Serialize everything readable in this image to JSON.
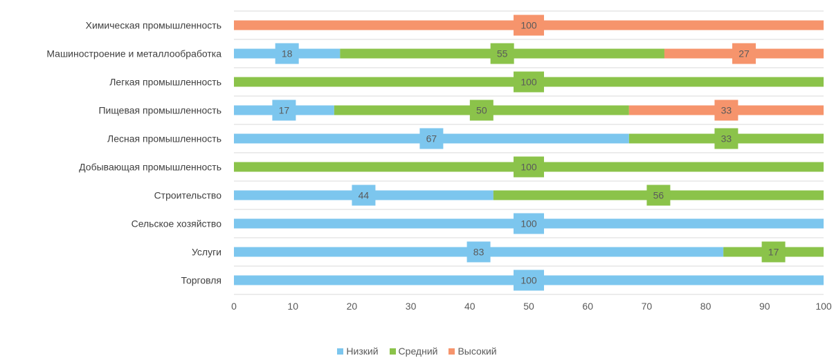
{
  "chart_data": {
    "type": "bar",
    "orientation": "horizontal",
    "stacked": true,
    "categories": [
      "Химическая промышленность",
      "Машиностроение и металлообработка",
      "Легкая промышленность",
      "Пищевая промышленность",
      "Лесная промышленность",
      "Добывающая промышленность",
      "Строительство",
      "Сельское хозяйство",
      "Услуги",
      "Торговля"
    ],
    "series": [
      {
        "name": "Низкий",
        "color": "#7cc6ee",
        "values": [
          0,
          18,
          0,
          17,
          67,
          0,
          44,
          100,
          83,
          100
        ]
      },
      {
        "name": "Средний",
        "color": "#8bc34a",
        "values": [
          0,
          55,
          100,
          50,
          33,
          100,
          56,
          0,
          17,
          0
        ]
      },
      {
        "name": "Высокий",
        "color": "#f6946c",
        "values": [
          100,
          27,
          0,
          33,
          0,
          0,
          0,
          0,
          0,
          0
        ]
      }
    ],
    "xlim": [
      0,
      100
    ],
    "xticks": [
      0,
      10,
      20,
      30,
      40,
      50,
      60,
      70,
      80,
      90,
      100
    ],
    "grid": true,
    "legend_position": "bottom"
  }
}
